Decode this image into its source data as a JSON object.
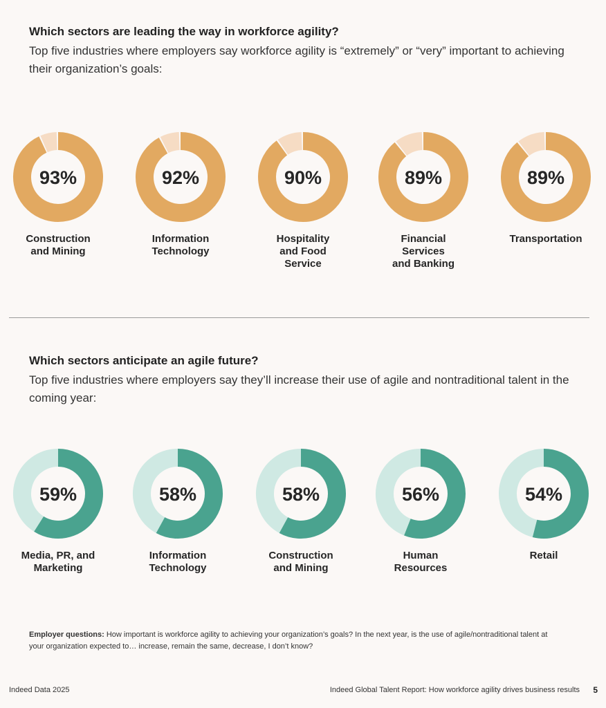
{
  "section1": {
    "title": "Which sectors are leading the way in workforce agility?",
    "subtitle": "Top five industries where employers say workforce agility is “extremely” or “very” important to achieving their organization’s goals:"
  },
  "section2": {
    "title": "Which sectors anticipate an agile future?",
    "subtitle": "Top five industries where employers say they’ll increase their use of agile and nontraditional talent in the coming year:"
  },
  "chart_data": [
    {
      "type": "pie",
      "variant": "donut",
      "colors": {
        "value": "#e2a961",
        "remainder": "#f6dcc4"
      },
      "categories": [
        "Construction\nand Mining",
        "Information\nTechnology",
        "Hospitality\nand Food\nService",
        "Financial\nServices\nand Banking",
        "Transportation"
      ],
      "values": [
        93,
        92,
        90,
        89,
        89
      ],
      "value_labels": [
        "93%",
        "92%",
        "90%",
        "89%",
        "89%"
      ]
    },
    {
      "type": "pie",
      "variant": "donut",
      "colors": {
        "value": "#4aa38f",
        "remainder": "#cfe9e3"
      },
      "categories": [
        "Media, PR, and\nMarketing",
        "Information\nTechnology",
        "Construction\nand Mining",
        "Human\nResources",
        "Retail"
      ],
      "values": [
        59,
        58,
        58,
        56,
        54
      ],
      "value_labels": [
        "59%",
        "58%",
        "58%",
        "56%",
        "54%"
      ]
    }
  ],
  "footnote": {
    "label": "Employer questions:",
    "text": " How important is workforce agility to achieving your organization’s goals? In the next year, is the use of agile/nontraditional talent at your organization expected to… increase, remain the same, decrease, I don’t know?"
  },
  "footer": {
    "left": "Indeed Data 2025",
    "right": "Indeed Global Talent Report: How workforce agility drives business results",
    "page": "5"
  }
}
